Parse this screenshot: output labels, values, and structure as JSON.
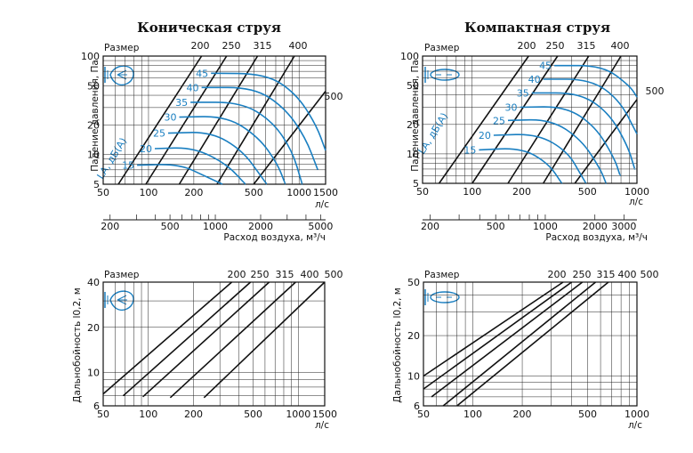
{
  "charts": {
    "tl": {
      "title": "Коническая струя",
      "size_header": "Размер",
      "ylabel": "Падение давления, Па",
      "xunit": "л/с",
      "xlabel2": "Расход воздуха, м³/ч",
      "noise_label": "LA, дБ(А)"
    },
    "tr": {
      "title": "Компактная струя",
      "size_header": "Размер",
      "ylabel": "Падение давления, Па",
      "xunit": "л/с",
      "xlabel2": "Расход воздуха, м³/ч",
      "noise_label": "LA, дБ(А)"
    },
    "bl": {
      "size_header": "Размер",
      "ylabel": "Дальнобойность l0,2, м",
      "xunit": "л/с"
    },
    "br": {
      "size_header": "Размер",
      "ylabel": "Дальнобойность l0,2, м",
      "xunit": "л/с"
    }
  },
  "colors": {
    "ink": "#111111",
    "noise": "#1a7fc1",
    "grid": "#222222"
  },
  "icons": {
    "tl": "conical-jet-icon",
    "tr": "compact-jet-icon",
    "bl": "conical-jet-icon",
    "br": "compact-jet-icon"
  },
  "chart_data": [
    {
      "id": "tl",
      "type": "line",
      "title": "Коническая струя",
      "x_scale": "log",
      "y_scale": "log",
      "xlim": [
        50,
        1500
      ],
      "ylim": [
        5,
        100
      ],
      "x_ticks": [
        50,
        100,
        200,
        500,
        1000,
        1500
      ],
      "y_ticks": [
        5,
        10,
        20,
        50,
        100
      ],
      "x2_ticks": [
        200,
        500,
        1000,
        2000,
        5000
      ],
      "ylabel": "Падение давления, Па",
      "xlabel": "л/с",
      "x2label": "Расход воздуха, м³/ч",
      "grid": true,
      "size_series": [
        {
          "name": "200",
          "points": [
            [
              63,
              5
            ],
            [
              225,
              100
            ]
          ]
        },
        {
          "name": "250",
          "points": [
            [
              96,
              5
            ],
            [
              330,
              100
            ]
          ]
        },
        {
          "name": "315",
          "points": [
            [
              160,
              5
            ],
            [
              530,
              100
            ]
          ]
        },
        {
          "name": "400",
          "points": [
            [
              285,
              5
            ],
            [
              930,
              100
            ]
          ]
        },
        {
          "name": "500",
          "points": [
            [
              500,
              5
            ],
            [
              1500,
              44
            ]
          ]
        }
      ],
      "noise_series": [
        {
          "name": "15",
          "points": [
            [
              84,
              7.8
            ],
            [
              160,
              8
            ],
            [
              240,
              6
            ],
            [
              310,
              5
            ]
          ]
        },
        {
          "name": "20",
          "points": [
            [
              110,
              11.5
            ],
            [
              200,
              11.8
            ],
            [
              330,
              8
            ],
            [
              440,
              5
            ]
          ]
        },
        {
          "name": "25",
          "points": [
            [
              135,
              16.5
            ],
            [
              260,
              17
            ],
            [
              420,
              11
            ],
            [
              560,
              6
            ],
            [
              610,
              5
            ]
          ]
        },
        {
          "name": "30",
          "points": [
            [
              160,
              24
            ],
            [
              330,
              24.5
            ],
            [
              540,
              15
            ],
            [
              720,
              8
            ],
            [
              810,
              5
            ]
          ]
        },
        {
          "name": "35",
          "points": [
            [
              190,
              34
            ],
            [
              410,
              34
            ],
            [
              660,
              22
            ],
            [
              900,
              11
            ],
            [
              1050,
              5
            ]
          ]
        },
        {
          "name": "40",
          "points": [
            [
              225,
              48
            ],
            [
              500,
              48
            ],
            [
              800,
              30
            ],
            [
              1100,
              15
            ],
            [
              1330,
              7
            ]
          ]
        },
        {
          "name": "45",
          "points": [
            [
              260,
              67
            ],
            [
              600,
              66
            ],
            [
              950,
              42
            ],
            [
              1300,
              20
            ],
            [
              1500,
              11
            ]
          ]
        }
      ]
    },
    {
      "id": "tr",
      "type": "line",
      "title": "Компактная струя",
      "x_scale": "log",
      "y_scale": "log",
      "xlim": [
        50,
        1000
      ],
      "ylim": [
        5,
        100
      ],
      "x_ticks": [
        50,
        100,
        200,
        500,
        1000
      ],
      "y_ticks": [
        5,
        10,
        20,
        50,
        100
      ],
      "x2_ticks": [
        200,
        500,
        1000,
        2000,
        3000
      ],
      "ylabel": "Падение давления, Па",
      "xlabel": "л/с",
      "x2label": "Расход воздуха, м³/ч",
      "grid": true,
      "size_series": [
        {
          "name": "200",
          "points": [
            [
              63,
              5
            ],
            [
              220,
              100
            ]
          ]
        },
        {
          "name": "250",
          "points": [
            [
              100,
              5
            ],
            [
              330,
              100
            ]
          ]
        },
        {
          "name": "315",
          "points": [
            [
              165,
              5
            ],
            [
              510,
              100
            ]
          ]
        },
        {
          "name": "400",
          "points": [
            [
              270,
              5
            ],
            [
              800,
              100
            ]
          ]
        },
        {
          "name": "500",
          "points": [
            [
              420,
              5
            ],
            [
              1000,
              36
            ]
          ]
        }
      ],
      "noise_series": [
        {
          "name": "15",
          "points": [
            [
              110,
              11
            ],
            [
              200,
              11.5
            ],
            [
              290,
              8
            ],
            [
              350,
              5
            ]
          ]
        },
        {
          "name": "20",
          "points": [
            [
              135,
              15.5
            ],
            [
              250,
              16
            ],
            [
              380,
              10.5
            ],
            [
              460,
              6
            ],
            [
              490,
              5
            ]
          ]
        },
        {
          "name": "25",
          "points": [
            [
              165,
              22
            ],
            [
              300,
              22.5
            ],
            [
              460,
              14
            ],
            [
              600,
              7
            ],
            [
              650,
              5
            ]
          ]
        },
        {
          "name": "30",
          "points": [
            [
              195,
              30
            ],
            [
              370,
              30.5
            ],
            [
              560,
              19
            ],
            [
              730,
              9
            ],
            [
              790,
              6
            ]
          ]
        },
        {
          "name": "35",
          "points": [
            [
              230,
              42
            ],
            [
              450,
              42
            ],
            [
              680,
              26
            ],
            [
              880,
              12
            ],
            [
              970,
              7
            ]
          ]
        },
        {
          "name": "40",
          "points": [
            [
              270,
              58
            ],
            [
              520,
              58
            ],
            [
              780,
              36
            ],
            [
              1000,
              16
            ]
          ]
        },
        {
          "name": "45",
          "points": [
            [
              315,
              80
            ],
            [
              620,
              80
            ],
            [
              900,
              50
            ],
            [
              1000,
              38
            ]
          ]
        }
      ]
    },
    {
      "id": "bl",
      "type": "line",
      "x_scale": "log",
      "y_scale": "log",
      "xlim": [
        50,
        1500
      ],
      "ylim": [
        6,
        40
      ],
      "x_ticks": [
        50,
        100,
        200,
        500,
        1000,
        1500
      ],
      "y_ticks": [
        6,
        10,
        20,
        40
      ],
      "ylabel": "Дальнобойность l0,2, м",
      "xlabel": "л/с",
      "grid": true,
      "size_series": [
        {
          "name": "200",
          "points": [
            [
              50,
              7.2
            ],
            [
              360,
              40
            ]
          ]
        },
        {
          "name": "250",
          "points": [
            [
              68,
              7
            ],
            [
              480,
              40
            ]
          ]
        },
        {
          "name": "315",
          "points": [
            [
              92,
              6.9
            ],
            [
              640,
              40
            ]
          ]
        },
        {
          "name": "400",
          "points": [
            [
              140,
              6.8
            ],
            [
              960,
              40
            ]
          ]
        },
        {
          "name": "500",
          "points": [
            [
              235,
              6.8
            ],
            [
              1500,
              40
            ]
          ]
        }
      ]
    },
    {
      "id": "br",
      "type": "line",
      "x_scale": "log",
      "y_scale": "log",
      "xlim": [
        50,
        1000
      ],
      "ylim": [
        6,
        50
      ],
      "x_ticks": [
        50,
        100,
        200,
        500,
        1000
      ],
      "y_ticks": [
        6,
        10,
        20,
        50
      ],
      "ylabel": "Дальнобойность l0,2, м",
      "xlabel": "л/с",
      "grid": true,
      "size_series": [
        {
          "name": "200",
          "points": [
            [
              50,
              10
            ],
            [
              355,
              50
            ]
          ]
        },
        {
          "name": "250",
          "points": [
            [
              50,
              8
            ],
            [
              400,
              50
            ]
          ]
        },
        {
          "name": "315",
          "points": [
            [
              56,
              7
            ],
            [
              465,
              50
            ]
          ]
        },
        {
          "name": "400",
          "points": [
            [
              66,
              6
            ],
            [
              560,
              50
            ]
          ]
        },
        {
          "name": "500",
          "points": [
            [
              80,
              6
            ],
            [
              670,
              50
            ]
          ]
        }
      ]
    }
  ]
}
